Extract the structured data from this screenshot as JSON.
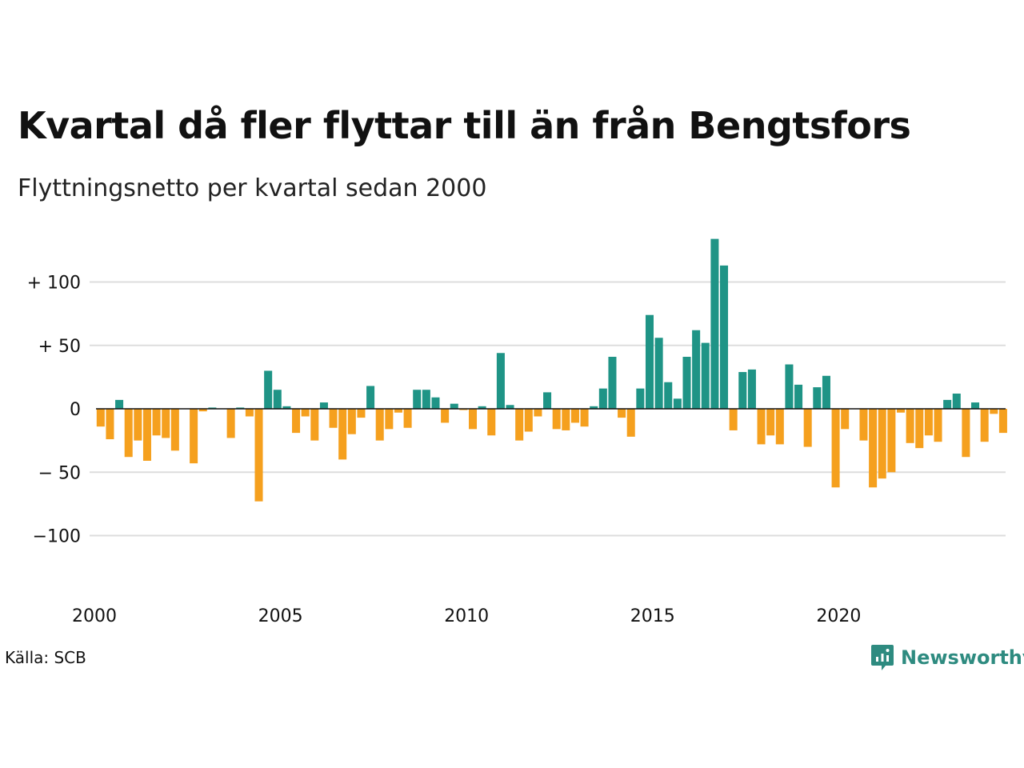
{
  "title": "Kvartal då fler flyttar till än från Bengtsfors",
  "subtitle": "Flyttningsnetto per kvartal sedan 2000",
  "source": "Källa: SCB",
  "brand": {
    "name": "Newsworthy",
    "icon": "newsworthy-logo-icon"
  },
  "colors": {
    "positive": "#1f9486",
    "negative": "#f5a01e",
    "grid": "#dddddd",
    "zero": "#111111"
  },
  "chart_data": {
    "type": "bar",
    "title": "Kvartal då fler flyttar till än från Bengtsfors",
    "subtitle": "Flyttningsnetto per kvartal sedan 2000",
    "xlabel": "",
    "ylabel": "",
    "x_start": "2000 Q1",
    "x_ticks": [
      "2000",
      "2005",
      "2010",
      "2015",
      "2020"
    ],
    "y_ticks": [
      {
        "value": 100,
        "label": "+ 100"
      },
      {
        "value": 50,
        "label": "+  50"
      },
      {
        "value": 0,
        "label": "0"
      },
      {
        "value": -50,
        "label": "− 50"
      },
      {
        "value": -100,
        "label": "−100"
      }
    ],
    "ylim": [
      -145,
      145
    ],
    "grid": true,
    "legend": "none",
    "values": [
      -14,
      -24,
      7,
      -38,
      -25,
      -41,
      -21,
      -23,
      -33,
      0,
      -43,
      -2,
      1,
      0,
      -23,
      1,
      -6,
      -73,
      30,
      15,
      2,
      -19,
      -6,
      -25,
      5,
      -15,
      -40,
      -20,
      -7,
      18,
      -25,
      -16,
      -3,
      -15,
      15,
      15,
      9,
      -11,
      4,
      -1,
      -16,
      2,
      -21,
      44,
      3,
      -25,
      -18,
      -6,
      13,
      -16,
      -17,
      -11,
      -14,
      2,
      16,
      41,
      -7,
      -22,
      16,
      74,
      56,
      21,
      8,
      41,
      62,
      52,
      134,
      113,
      -17,
      29,
      31,
      -28,
      -21,
      -28,
      35,
      19,
      -30,
      17,
      26,
      -62,
      -16,
      0,
      -25,
      -62,
      -55,
      -50,
      -3,
      -27,
      -31,
      -21,
      -26,
      7,
      12,
      -38,
      5,
      -26,
      -4,
      -19
    ]
  }
}
